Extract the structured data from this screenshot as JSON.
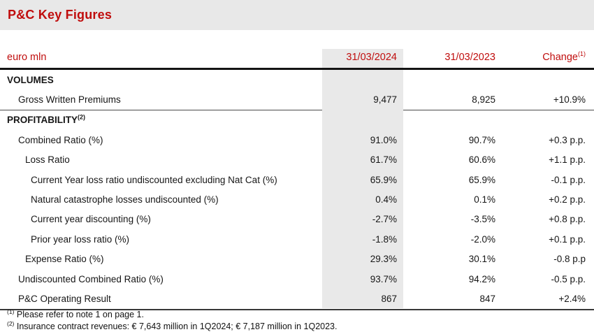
{
  "title": "P&C Key Figures",
  "colors": {
    "accent_red": "#C00D0D",
    "banner_gray": "#E8E8E8",
    "column_shade": "#E9E9E9",
    "rule_black": "#141414"
  },
  "table": {
    "unit_label": "euro mln",
    "columns": [
      "31/03/2024",
      "31/03/2023",
      "Change"
    ],
    "change_sup": "(1)",
    "rows": [
      {
        "label": "VOLUMES",
        "section": true,
        "indent": 0,
        "sup": "",
        "v2024": "",
        "v2023": "",
        "change": ""
      },
      {
        "label": "Gross Written Premiums",
        "section": false,
        "indent": 1,
        "sup": "",
        "v2024": "9,477",
        "v2023": "8,925",
        "change": "+10.9%",
        "separator_below": true
      },
      {
        "label": "PROFITABILITY",
        "section": true,
        "indent": 0,
        "sup": "(2)",
        "v2024": "",
        "v2023": "",
        "change": ""
      },
      {
        "label": "Combined Ratio (%)",
        "section": false,
        "indent": 1,
        "sup": "",
        "v2024": "91.0%",
        "v2023": "90.7%",
        "change": "+0.3 p.p."
      },
      {
        "label": "Loss Ratio",
        "section": false,
        "indent": 2,
        "sup": "",
        "v2024": "61.7%",
        "v2023": "60.6%",
        "change": "+1.1 p.p."
      },
      {
        "label": "Current Year loss ratio undiscounted excluding Nat Cat (%)",
        "section": false,
        "indent": 3,
        "sup": "",
        "v2024": "65.9%",
        "v2023": "65.9%",
        "change": "-0.1 p.p."
      },
      {
        "label": "Natural catastrophe losses undiscounted (%)",
        "section": false,
        "indent": 3,
        "sup": "",
        "v2024": "0.4%",
        "v2023": "0.1%",
        "change": "+0.2 p.p."
      },
      {
        "label": "Current year discounting (%)",
        "section": false,
        "indent": 3,
        "sup": "",
        "v2024": "-2.7%",
        "v2023": "-3.5%",
        "change": "+0.8 p.p."
      },
      {
        "label": "Prior year loss ratio (%)",
        "section": false,
        "indent": 3,
        "sup": "",
        "v2024": "-1.8%",
        "v2023": "-2.0%",
        "change": "+0.1 p.p."
      },
      {
        "label": "Expense Ratio (%)",
        "section": false,
        "indent": 2,
        "sup": "",
        "v2024": "29.3%",
        "v2023": "30.1%",
        "change": "-0.8 p.p"
      },
      {
        "label": "Undiscounted Combined Ratio (%)",
        "section": false,
        "indent": 1,
        "sup": "",
        "v2024": "93.7%",
        "v2023": "94.2%",
        "change": "-0.5 p.p."
      },
      {
        "label": "P&C Operating Result",
        "section": false,
        "indent": 1,
        "sup": "",
        "v2024": "867",
        "v2023": "847",
        "change": "+2.4%"
      }
    ]
  },
  "footnotes": [
    {
      "marker": "(1)",
      "text": "Please refer to note 1 on page 1."
    },
    {
      "marker": "(2)",
      "text": "Insurance contract revenues: € 7,643 million in 1Q2024; € 7,187 million in 1Q2023."
    }
  ]
}
